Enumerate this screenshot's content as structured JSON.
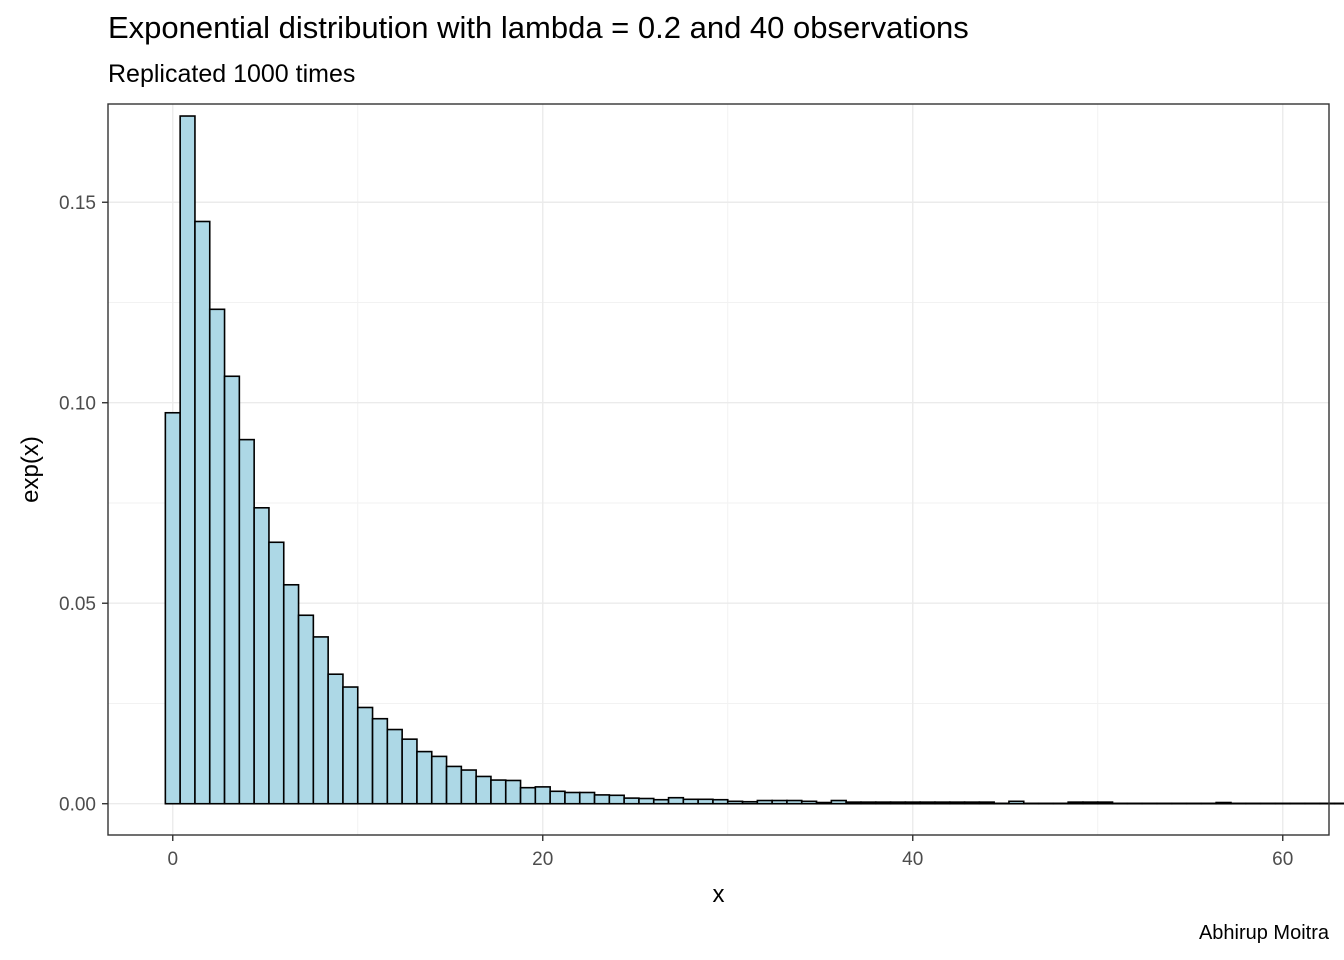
{
  "chart_data": {
    "type": "bar",
    "title": "Exponential distribution with lambda = 0.2 and 40 observations",
    "subtitle": "Replicated 1000 times",
    "caption": "Abhirup Moitra",
    "xlabel": "x",
    "ylabel": "exp(x)",
    "xlim": [
      -3.5,
      62.5
    ],
    "ylim": [
      -0.0078,
      0.1745
    ],
    "x_ticks": [
      0,
      20,
      40,
      60
    ],
    "x_tick_labels": [
      "0",
      "20",
      "40",
      "60"
    ],
    "y_ticks": [
      0.0,
      0.05,
      0.1,
      0.15
    ],
    "y_tick_labels": [
      "0.00",
      "0.05",
      "0.10",
      "0.15"
    ],
    "grid": true,
    "bin_width": 0.8,
    "bin_start": -0.4,
    "bar_fill": "#add8e6",
    "bar_stroke": "#000000",
    "values": [
      0.0975,
      0.1715,
      0.1452,
      0.1233,
      0.1066,
      0.0908,
      0.0738,
      0.0652,
      0.0546,
      0.047,
      0.0416,
      0.0323,
      0.0291,
      0.024,
      0.0212,
      0.0185,
      0.0161,
      0.013,
      0.0118,
      0.0093,
      0.0084,
      0.0068,
      0.0059,
      0.0058,
      0.004,
      0.0042,
      0.0031,
      0.0028,
      0.0028,
      0.0022,
      0.0021,
      0.0014,
      0.0013,
      0.001,
      0.0015,
      0.0011,
      0.0011,
      0.001,
      0.0006,
      0.0005,
      0.0008,
      0.0008,
      0.0008,
      0.0006,
      0.0003,
      0.0008,
      0.0004,
      0.0004,
      0.0004,
      0.0004,
      0.0004,
      0.0004,
      0.0004,
      0.0004,
      0.0004,
      0.0004,
      0.0001,
      0.0006,
      0.0001,
      0.0001,
      0.0001,
      0.0004,
      0.0004,
      0.0004,
      0.0001,
      0.0001,
      0.0001,
      0.0001,
      0.0001,
      0.0001,
      0.0001,
      0.0003,
      0.0001,
      0.0001,
      0.0001,
      0.0001,
      0.0001,
      0.0001,
      0.0001,
      0.0001,
      0.0001,
      0.0001,
      0.0001,
      0.0001,
      0.0001,
      0.0001,
      0.0001,
      0.0001,
      0.0001,
      0.0001,
      0.0004,
      0.0001,
      0.0001,
      0.0003,
      0.0001,
      0.0001,
      0.0001,
      0.0001,
      0.0003,
      0.0001,
      0.0003,
      0.0001,
      0.0001,
      0.0003,
      0.0001,
      0.0001,
      0.0001,
      0.0001,
      0.0001,
      0.0001,
      0.0003,
      0.0001,
      0.0003,
      0.0001,
      0.0001,
      0.0001,
      0.0001,
      0.0001,
      0.0001,
      0.0001,
      0.0001,
      0.0001,
      0.0001,
      0.0001,
      0.0001,
      0.0001,
      0.0001,
      0.0001,
      0.0001,
      0.0001,
      0.0001,
      0.0001,
      0.0001,
      0.0001,
      0.0001,
      0.0001,
      0.0001,
      0.0001,
      0.0001,
      0.0001,
      0.0001,
      0.0001,
      0.0001,
      0.0001,
      0.0001,
      0.0001,
      0.0001,
      0.0001,
      0.0001,
      0.0001,
      0.0001,
      0.0001,
      0.0001,
      0.0001,
      0.0001,
      0.0001,
      0.0001,
      0.0001,
      0.0001,
      0.0001,
      0.0001,
      0.0001,
      0.0001,
      0.0001,
      0.0001,
      0.0001,
      0.0001,
      0.0001,
      0.0001,
      0.0001,
      0.0001,
      0.0001,
      0.0001,
      0.0001,
      0.0001,
      0.0001,
      0.0001,
      0.0001,
      0.0001,
      0.0001,
      0.0001,
      0.0001,
      0.0001,
      0.0001,
      0.0001,
      0.0001,
      0.0001,
      0.0001,
      0.0001,
      0.0001,
      0.0001,
      0.0001,
      0.0001,
      0.0001,
      0.0001,
      0.0001,
      0.0001,
      0.0001,
      0.0001,
      0.0001
    ]
  }
}
